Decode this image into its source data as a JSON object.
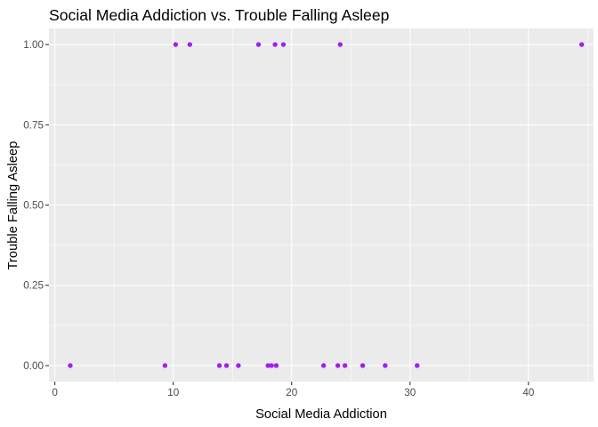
{
  "chart_data": {
    "type": "scatter",
    "title": "Social Media Addiction vs. Trouble Falling Asleep",
    "xlabel": "Social Media Addiction",
    "ylabel": "Trouble Falling Asleep",
    "xlim": [
      -0.5,
      45.5
    ],
    "ylim": [
      -0.05,
      1.05
    ],
    "x_ticks": [
      0,
      10,
      20,
      30,
      40
    ],
    "x_tick_labels": [
      "0",
      "10",
      "20",
      "30",
      "40"
    ],
    "y_ticks": [
      0,
      0.25,
      0.5,
      0.75,
      1.0
    ],
    "y_tick_labels": [
      "0.00",
      "0.25",
      "0.50",
      "0.75",
      "1.00"
    ],
    "grid": true,
    "point_color": "#a020f0",
    "points": [
      {
        "x": 1.3,
        "y": 0
      },
      {
        "x": 9.3,
        "y": 0
      },
      {
        "x": 13.9,
        "y": 0
      },
      {
        "x": 14.5,
        "y": 0
      },
      {
        "x": 15.5,
        "y": 0
      },
      {
        "x": 18.0,
        "y": 0
      },
      {
        "x": 18.3,
        "y": 0
      },
      {
        "x": 18.7,
        "y": 0
      },
      {
        "x": 22.7,
        "y": 0
      },
      {
        "x": 23.9,
        "y": 0
      },
      {
        "x": 24.5,
        "y": 0
      },
      {
        "x": 26.0,
        "y": 0
      },
      {
        "x": 27.9,
        "y": 0
      },
      {
        "x": 30.6,
        "y": 0
      },
      {
        "x": 10.2,
        "y": 1
      },
      {
        "x": 11.4,
        "y": 1
      },
      {
        "x": 17.2,
        "y": 1
      },
      {
        "x": 18.6,
        "y": 1
      },
      {
        "x": 19.3,
        "y": 1
      },
      {
        "x": 24.1,
        "y": 1
      },
      {
        "x": 44.5,
        "y": 1
      }
    ]
  }
}
